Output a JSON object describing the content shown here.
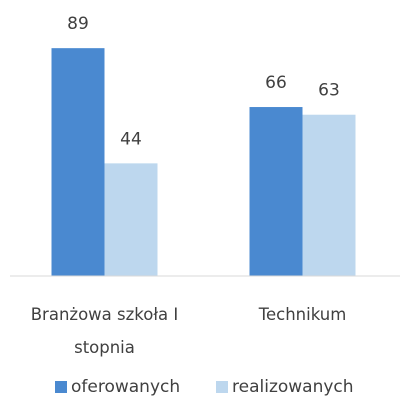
{
  "chart_data": {
    "type": "bar",
    "categories": [
      "Branżowa szkoła I stopnia",
      "Technikum"
    ],
    "series": [
      {
        "name": "oferowanych",
        "color": "#4a89d0",
        "values": [
          89,
          66
        ]
      },
      {
        "name": "realizowanych",
        "color": "#bdd7ee",
        "values": [
          44,
          63
        ]
      }
    ],
    "ylim": [
      0,
      100
    ],
    "legend": "bottom"
  }
}
